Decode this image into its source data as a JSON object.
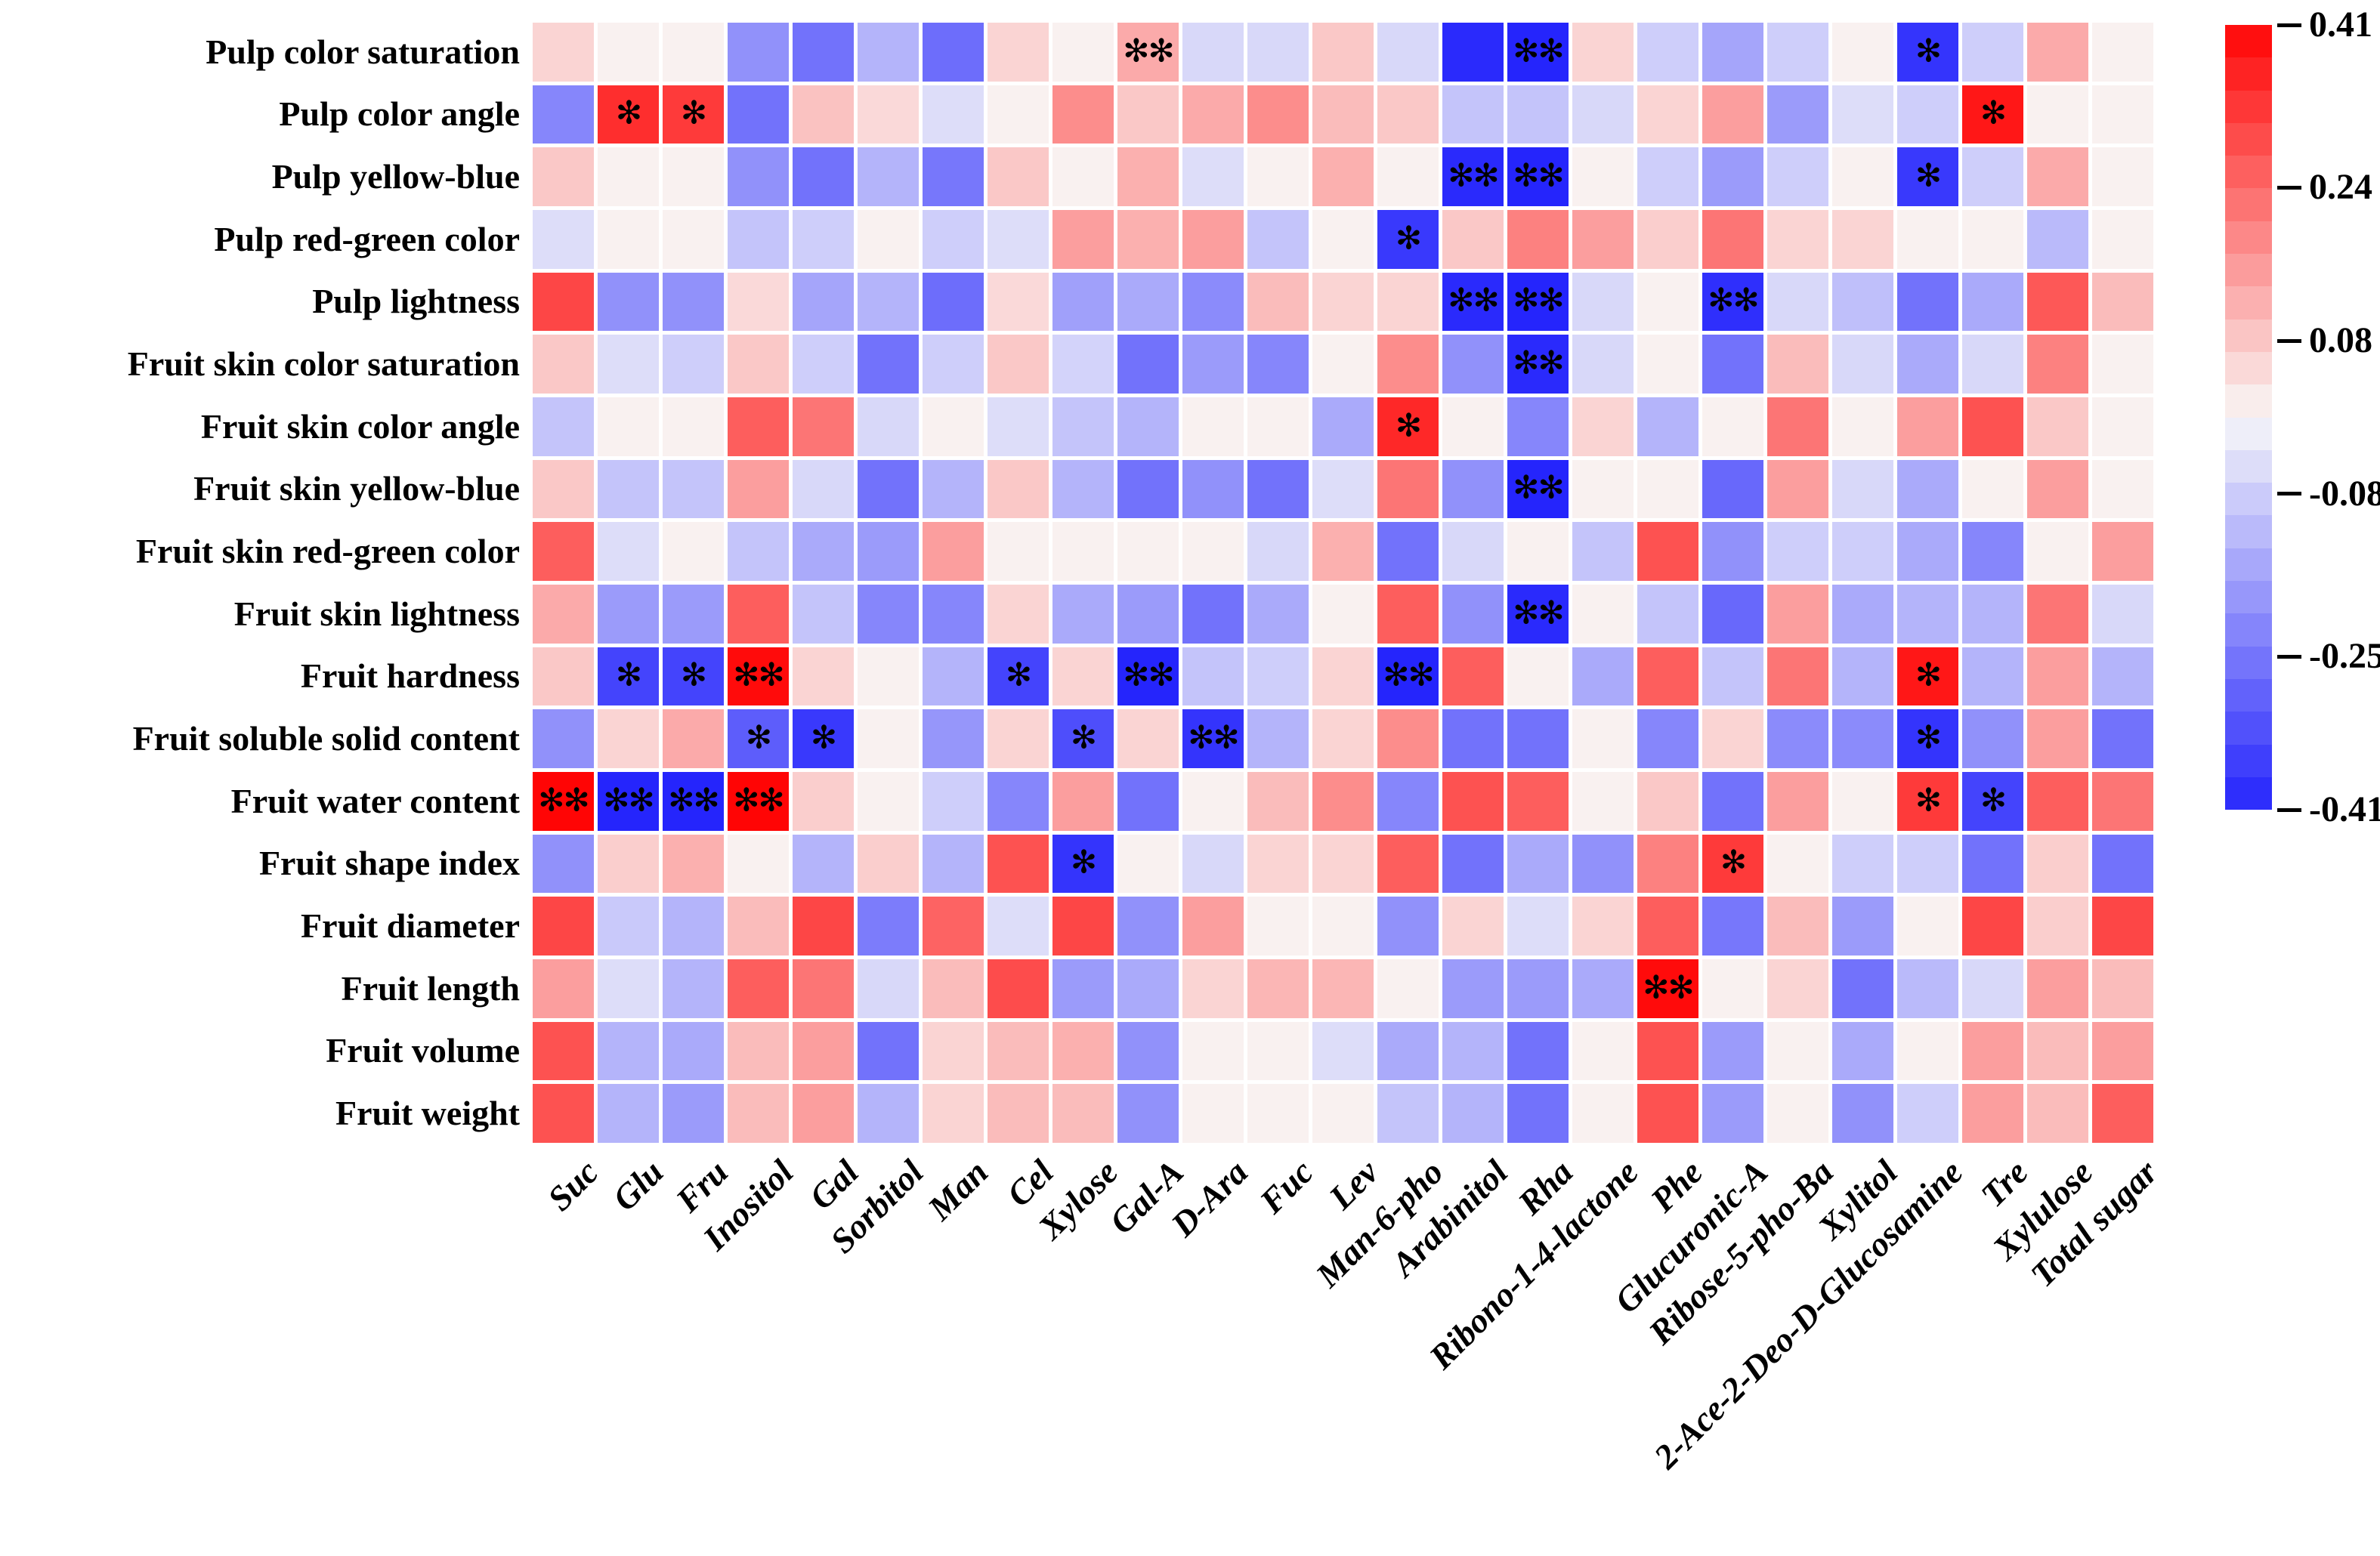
{
  "chart_data": {
    "type": "heatmap",
    "title": "",
    "rows": [
      "Pulp color saturation",
      "Pulp color angle",
      "Pulp yellow-blue",
      "Pulp red-green color",
      "Pulp lightness",
      "Fruit skin color saturation",
      "Fruit skin color angle",
      "Fruit skin yellow-blue",
      "Fruit skin red-green color",
      "Fruit skin lightness",
      "Fruit hardness",
      "Fruit soluble solid content",
      "Fruit water content",
      "Fruit shape index",
      "Fruit diameter",
      "Fruit length",
      "Fruit volume",
      "Fruit weight"
    ],
    "columns": [
      "Suc",
      "Glu",
      "Fru",
      "Inositol",
      "Gal",
      "Sorbitol",
      "Man",
      "Cel",
      "Xylose",
      "Gal-A",
      "D-Ara",
      "Fuc",
      "Lev",
      "Man-6-pho",
      "Arabinitol",
      "Rha",
      "Ribono-1-4-lactone",
      "Phe",
      "Glucuronic-A",
      "Ribose-5-pho-Ba",
      "Xylitol",
      "2-Ace-2-Deo-D-Glucosamine",
      "Tre",
      "Xylulose",
      "Total sugar"
    ],
    "values": [
      [
        0.06,
        0.01,
        0.01,
        -0.2,
        -0.26,
        -0.13,
        -0.27,
        0.06,
        0.01,
        0.13,
        -0.06,
        -0.06,
        0.08,
        -0.06,
        -0.4,
        -0.41,
        0.06,
        -0.08,
        -0.16,
        -0.08,
        0.01,
        -0.38,
        -0.08,
        0.13,
        0.01
      ],
      [
        -0.22,
        0.34,
        0.32,
        -0.26,
        0.09,
        0.05,
        -0.05,
        0.01,
        0.18,
        0.08,
        0.13,
        0.18,
        0.1,
        0.08,
        -0.1,
        -0.1,
        -0.06,
        0.06,
        0.15,
        -0.18,
        -0.05,
        -0.08,
        0.38,
        0.01,
        0.01
      ],
      [
        0.08,
        0.01,
        0.01,
        -0.2,
        -0.26,
        -0.13,
        -0.25,
        0.08,
        0.01,
        0.12,
        -0.05,
        0.01,
        0.12,
        0.01,
        -0.4,
        -0.41,
        0.01,
        -0.08,
        -0.18,
        -0.08,
        0.01,
        -0.37,
        -0.08,
        0.13,
        0.01
      ],
      [
        -0.05,
        0.01,
        0.01,
        -0.1,
        -0.08,
        0.01,
        -0.08,
        -0.05,
        0.15,
        0.12,
        0.15,
        -0.1,
        0.01,
        -0.37,
        0.08,
        0.2,
        0.15,
        0.07,
        0.22,
        0.06,
        0.06,
        0.01,
        0.01,
        -0.12,
        0.01
      ],
      [
        0.3,
        -0.2,
        -0.2,
        0.05,
        -0.16,
        -0.13,
        -0.27,
        0.05,
        -0.17,
        -0.15,
        -0.21,
        0.1,
        0.06,
        0.06,
        -0.4,
        -0.41,
        -0.06,
        0.01,
        -0.39,
        -0.06,
        -0.11,
        -0.26,
        -0.15,
        0.27,
        0.1
      ],
      [
        0.08,
        -0.05,
        -0.08,
        0.08,
        -0.08,
        -0.26,
        -0.08,
        0.08,
        -0.07,
        -0.26,
        -0.18,
        -0.22,
        0.01,
        0.18,
        -0.2,
        -0.4,
        -0.06,
        0.01,
        -0.26,
        0.1,
        -0.06,
        -0.15,
        -0.06,
        0.2,
        0.01
      ],
      [
        -0.1,
        0.01,
        0.01,
        0.26,
        0.22,
        -0.06,
        0.01,
        -0.05,
        -0.1,
        -0.13,
        0.01,
        0.01,
        -0.15,
        0.35,
        0.01,
        -0.22,
        0.06,
        -0.13,
        0.01,
        0.22,
        0.01,
        0.15,
        0.28,
        0.08,
        0.01
      ],
      [
        0.08,
        -0.1,
        -0.1,
        0.15,
        -0.06,
        -0.26,
        -0.13,
        0.08,
        -0.13,
        -0.26,
        -0.2,
        -0.26,
        -0.05,
        0.22,
        -0.2,
        -0.41,
        0.01,
        0.01,
        -0.28,
        0.15,
        -0.06,
        -0.15,
        0.01,
        0.15,
        0.01
      ],
      [
        0.26,
        -0.05,
        0.01,
        -0.1,
        -0.15,
        -0.18,
        0.15,
        0.01,
        0.01,
        0.01,
        0.01,
        -0.06,
        0.12,
        -0.26,
        -0.06,
        0.01,
        -0.1,
        0.28,
        -0.2,
        -0.08,
        -0.08,
        -0.15,
        -0.22,
        0.01,
        0.15
      ],
      [
        0.13,
        -0.18,
        -0.18,
        0.26,
        -0.1,
        -0.22,
        -0.22,
        0.06,
        -0.15,
        -0.18,
        -0.26,
        -0.15,
        0.01,
        0.26,
        -0.2,
        -0.4,
        0.01,
        -0.1,
        -0.28,
        0.15,
        -0.15,
        -0.13,
        -0.13,
        0.22,
        -0.06
      ],
      [
        0.08,
        -0.35,
        -0.35,
        0.4,
        0.06,
        0.01,
        -0.13,
        -0.35,
        0.06,
        -0.41,
        -0.1,
        -0.08,
        0.06,
        -0.41,
        0.26,
        0.01,
        -0.15,
        0.26,
        -0.1,
        0.22,
        -0.13,
        0.38,
        -0.13,
        0.15,
        -0.13
      ],
      [
        -0.2,
        0.06,
        0.13,
        -0.3,
        -0.37,
        0.01,
        -0.19,
        0.06,
        -0.33,
        0.06,
        -0.38,
        -0.13,
        0.06,
        0.18,
        -0.26,
        -0.26,
        0.01,
        -0.22,
        0.06,
        -0.21,
        -0.21,
        -0.38,
        -0.2,
        0.15,
        -0.26
      ],
      [
        0.41,
        -0.41,
        -0.41,
        0.41,
        0.07,
        0.01,
        -0.08,
        -0.22,
        0.15,
        -0.26,
        0.01,
        0.1,
        0.18,
        -0.22,
        0.28,
        0.26,
        0.01,
        0.08,
        -0.26,
        0.15,
        0.01,
        0.32,
        -0.35,
        0.26,
        0.22
      ],
      [
        -0.2,
        0.07,
        0.12,
        0.01,
        -0.13,
        0.07,
        -0.13,
        0.28,
        -0.38,
        0.01,
        -0.06,
        0.06,
        0.06,
        0.26,
        -0.26,
        -0.15,
        -0.2,
        0.2,
        0.32,
        0.01,
        -0.08,
        -0.08,
        -0.26,
        0.07,
        -0.26
      ],
      [
        0.3,
        -0.09,
        -0.13,
        0.1,
        0.3,
        -0.24,
        0.25,
        -0.05,
        0.3,
        -0.2,
        0.15,
        0.01,
        0.01,
        -0.2,
        0.06,
        -0.05,
        0.06,
        0.26,
        -0.25,
        0.1,
        -0.18,
        0.01,
        0.3,
        0.07,
        0.3
      ],
      [
        0.15,
        -0.05,
        -0.13,
        0.26,
        0.22,
        -0.06,
        0.1,
        0.29,
        -0.18,
        -0.15,
        0.06,
        0.11,
        0.11,
        0.01,
        -0.18,
        -0.18,
        -0.15,
        0.4,
        0.01,
        0.06,
        -0.26,
        -0.12,
        -0.06,
        0.15,
        0.1
      ],
      [
        0.28,
        -0.13,
        -0.15,
        0.1,
        0.15,
        -0.26,
        0.06,
        0.1,
        0.12,
        -0.2,
        0.01,
        0.01,
        -0.05,
        -0.15,
        -0.13,
        -0.26,
        0.01,
        0.28,
        -0.18,
        0.01,
        -0.15,
        0.01,
        0.15,
        0.1,
        0.15
      ],
      [
        0.28,
        -0.13,
        -0.18,
        0.1,
        0.15,
        -0.13,
        0.06,
        0.1,
        0.1,
        -0.2,
        0.01,
        0.01,
        0.01,
        -0.1,
        -0.13,
        -0.26,
        0.01,
        0.28,
        -0.18,
        0.01,
        -0.2,
        -0.08,
        0.15,
        0.1,
        0.26
      ]
    ],
    "significance": [
      {
        "row": 0,
        "col": 9,
        "mark": "**"
      },
      {
        "row": 0,
        "col": 15,
        "mark": "**"
      },
      {
        "row": 0,
        "col": 21,
        "mark": "*"
      },
      {
        "row": 1,
        "col": 1,
        "mark": "*"
      },
      {
        "row": 1,
        "col": 2,
        "mark": "*"
      },
      {
        "row": 1,
        "col": 22,
        "mark": "*"
      },
      {
        "row": 2,
        "col": 14,
        "mark": "**"
      },
      {
        "row": 2,
        "col": 15,
        "mark": "**"
      },
      {
        "row": 2,
        "col": 21,
        "mark": "*"
      },
      {
        "row": 3,
        "col": 13,
        "mark": "*"
      },
      {
        "row": 4,
        "col": 14,
        "mark": "**"
      },
      {
        "row": 4,
        "col": 15,
        "mark": "**"
      },
      {
        "row": 4,
        "col": 18,
        "mark": "**"
      },
      {
        "row": 5,
        "col": 15,
        "mark": "**"
      },
      {
        "row": 6,
        "col": 13,
        "mark": "*"
      },
      {
        "row": 7,
        "col": 15,
        "mark": "**"
      },
      {
        "row": 9,
        "col": 15,
        "mark": "**"
      },
      {
        "row": 10,
        "col": 1,
        "mark": "*"
      },
      {
        "row": 10,
        "col": 2,
        "mark": "*"
      },
      {
        "row": 10,
        "col": 3,
        "mark": "**"
      },
      {
        "row": 10,
        "col": 7,
        "mark": "*"
      },
      {
        "row": 10,
        "col": 9,
        "mark": "**"
      },
      {
        "row": 10,
        "col": 13,
        "mark": "**"
      },
      {
        "row": 10,
        "col": 21,
        "mark": "*"
      },
      {
        "row": 11,
        "col": 3,
        "mark": "*"
      },
      {
        "row": 11,
        "col": 4,
        "mark": "*"
      },
      {
        "row": 11,
        "col": 8,
        "mark": "*"
      },
      {
        "row": 11,
        "col": 10,
        "mark": "**"
      },
      {
        "row": 11,
        "col": 21,
        "mark": "*"
      },
      {
        "row": 12,
        "col": 0,
        "mark": "**"
      },
      {
        "row": 12,
        "col": 1,
        "mark": "**"
      },
      {
        "row": 12,
        "col": 2,
        "mark": "**"
      },
      {
        "row": 12,
        "col": 3,
        "mark": "**"
      },
      {
        "row": 12,
        "col": 21,
        "mark": "*"
      },
      {
        "row": 12,
        "col": 22,
        "mark": "*"
      },
      {
        "row": 13,
        "col": 8,
        "mark": "*"
      },
      {
        "row": 13,
        "col": 18,
        "mark": "*"
      },
      {
        "row": 15,
        "col": 17,
        "mark": "**"
      }
    ],
    "colorbar": {
      "vmin": -0.41,
      "vmax": 0.41,
      "steps": 24,
      "ticks": [
        "0.41",
        "0.24",
        "0.08",
        "-0.08",
        "-0.25",
        "-0.41"
      ],
      "tick_values": [
        0.41,
        0.24,
        0.08,
        -0.08,
        -0.25,
        -0.41
      ],
      "color_positive_max": "#ff0505",
      "color_negative_max": "#2525fc",
      "color_zero": "#f8f7f7"
    },
    "legend_position": "right",
    "grid": false,
    "marker_glyph": "teardrop-asterisk"
  }
}
